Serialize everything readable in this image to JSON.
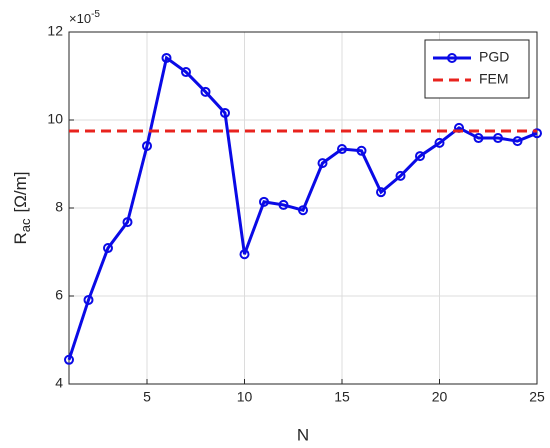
{
  "chart_data": {
    "type": "line",
    "xlabel": "N",
    "ylabel": {
      "main": "R",
      "sub": "ac",
      "unit": "[Ω/m]"
    },
    "y_multiplier": {
      "base": "×10",
      "exponent": "-5"
    },
    "x": [
      1,
      2,
      3,
      4,
      5,
      6,
      7,
      8,
      9,
      10,
      11,
      12,
      13,
      14,
      15,
      16,
      17,
      18,
      19,
      20,
      21,
      22,
      23,
      24,
      25
    ],
    "series": [
      {
        "name": "PGD",
        "color": "#0a0ae6",
        "style": "solid",
        "marker": "circle",
        "values": [
          4.55,
          5.91,
          7.09,
          7.68,
          9.41,
          11.41,
          11.09,
          10.64,
          10.16,
          6.95,
          8.14,
          8.07,
          7.95,
          9.02,
          9.34,
          9.3,
          8.36,
          8.73,
          9.18,
          9.48,
          9.82,
          9.59,
          9.59,
          9.52,
          9.7
        ]
      },
      {
        "name": "FEM",
        "color": "#e8231e",
        "style": "dashed",
        "value": 9.75
      }
    ],
    "xlim": [
      1,
      25
    ],
    "xticks": [
      5,
      10,
      15,
      20,
      25
    ],
    "ylim": [
      4,
      12
    ],
    "yticks": [
      4,
      6,
      8,
      10,
      12
    ],
    "grid": true,
    "legend": "top-right"
  }
}
